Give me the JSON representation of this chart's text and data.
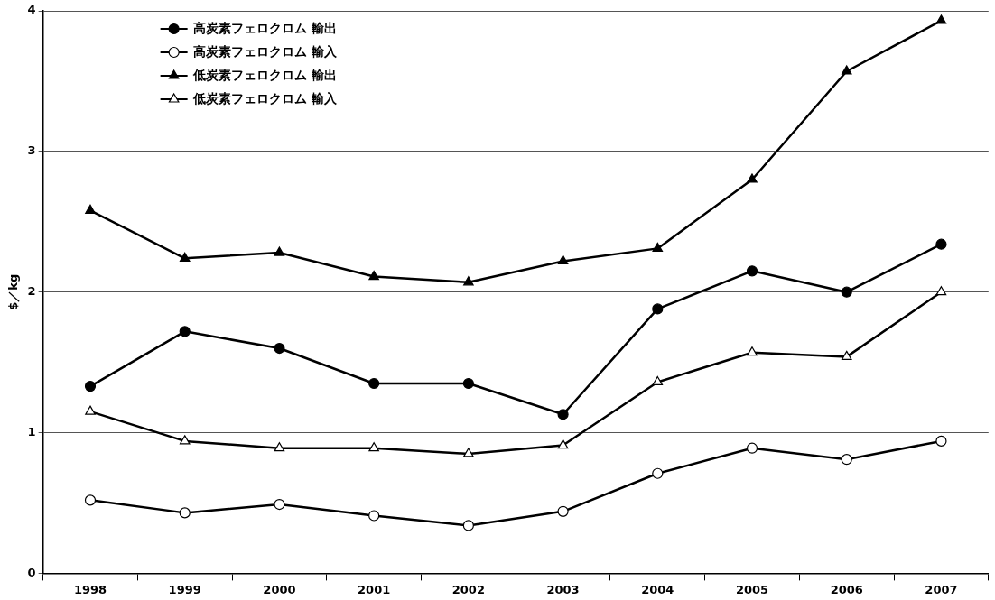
{
  "chart_data": {
    "type": "line",
    "categories": [
      "1998",
      "1999",
      "2000",
      "2001",
      "2002",
      "2003",
      "2004",
      "2005",
      "2006",
      "2007"
    ],
    "ylabel": "$／kg",
    "ylim": [
      0,
      4
    ],
    "yticks": [
      0,
      1,
      2,
      3,
      4
    ],
    "grid": "y",
    "legend": "top left",
    "line_style": "solid",
    "series": [
      {
        "name": "高炭素フェロクロム 輸出",
        "color": "#000000",
        "marker": "circle",
        "values": [
          1.33,
          1.72,
          1.6,
          1.35,
          1.35,
          1.13,
          1.88,
          2.15,
          2.0,
          2.34
        ]
      },
      {
        "name": "高炭素フェロクロム 輸入",
        "color": "#000000",
        "marker": "circle",
        "colors": [
          "#ffffff",
          "#ffffff",
          "#ffffff",
          "#ffffff",
          "#ffffff",
          "#ffffff",
          "#ffffff",
          "#ffffff",
          "#ffffff",
          "#ffffff"
        ],
        "values": [
          0.52,
          0.43,
          0.49,
          0.41,
          0.34,
          0.44,
          0.71,
          0.89,
          0.81,
          0.94
        ]
      },
      {
        "name": "低炭素フェロクロム 輸出",
        "color": "#000000",
        "marker": "triangle",
        "values": [
          2.58,
          2.24,
          2.28,
          2.11,
          2.07,
          2.22,
          2.31,
          2.8,
          3.57,
          3.93
        ]
      },
      {
        "name": "低炭素フェロクロム 輸入",
        "color": "#000000",
        "marker": "triangle",
        "colors": [
          "#ffffff",
          "#ffffff",
          "#ffffff",
          "#ffffff",
          "#ffffff",
          "#ffffff",
          "#ffffff",
          "#ffffff",
          "#ffffff",
          "#ffffff"
        ],
        "values": [
          1.15,
          0.94,
          0.89,
          0.89,
          0.85,
          0.91,
          1.36,
          1.57,
          1.54,
          2.0
        ]
      }
    ]
  }
}
